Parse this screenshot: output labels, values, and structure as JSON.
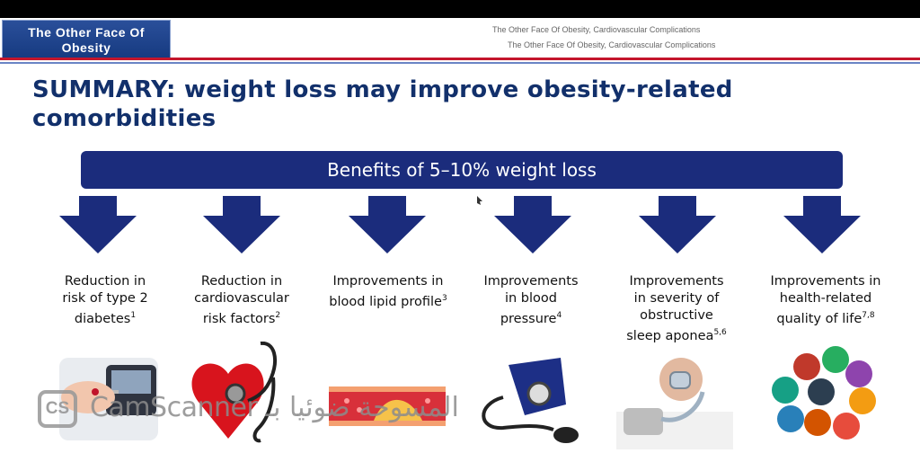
{
  "header": {
    "logo_text_line1": "The Other Face Of",
    "logo_text_line2": "Obesity",
    "subtitle_line1": "The Other Face Of Obesity, Cardiovascular Complications",
    "subtitle_line2": "The Other Face Of Obesity, Cardiovascular Complications"
  },
  "title_line1": "SUMMARY: weight loss may improve obesity-related",
  "title_line2": "comorbidities",
  "banner": "Benefits of 5–10% weight loss",
  "benefits": [
    {
      "lines": [
        "Reduction in",
        "risk of type 2",
        "diabetes"
      ],
      "sup": "1"
    },
    {
      "lines": [
        "Reduction in",
        "cardiovascular",
        "risk factors"
      ],
      "sup": "2"
    },
    {
      "lines": [
        "Improvements in",
        "blood lipid profile"
      ],
      "sup": "3"
    },
    {
      "lines": [
        "Improvements",
        "in blood",
        "pressure"
      ],
      "sup": "4"
    },
    {
      "lines": [
        "Improvements",
        "in severity of",
        "obstructive",
        "sleep aponea"
      ],
      "sup": "5,6"
    },
    {
      "lines": [
        "Improvements in",
        "health-related",
        "quality of life"
      ],
      "sup": "7,8"
    }
  ],
  "watermark": {
    "icon_text": "CS",
    "text": "CamScanner المسوحة ضوئيا بـ"
  },
  "colors": {
    "navy": "#1b2c7c",
    "title": "#12306b",
    "red_rule": "#c4162c"
  }
}
